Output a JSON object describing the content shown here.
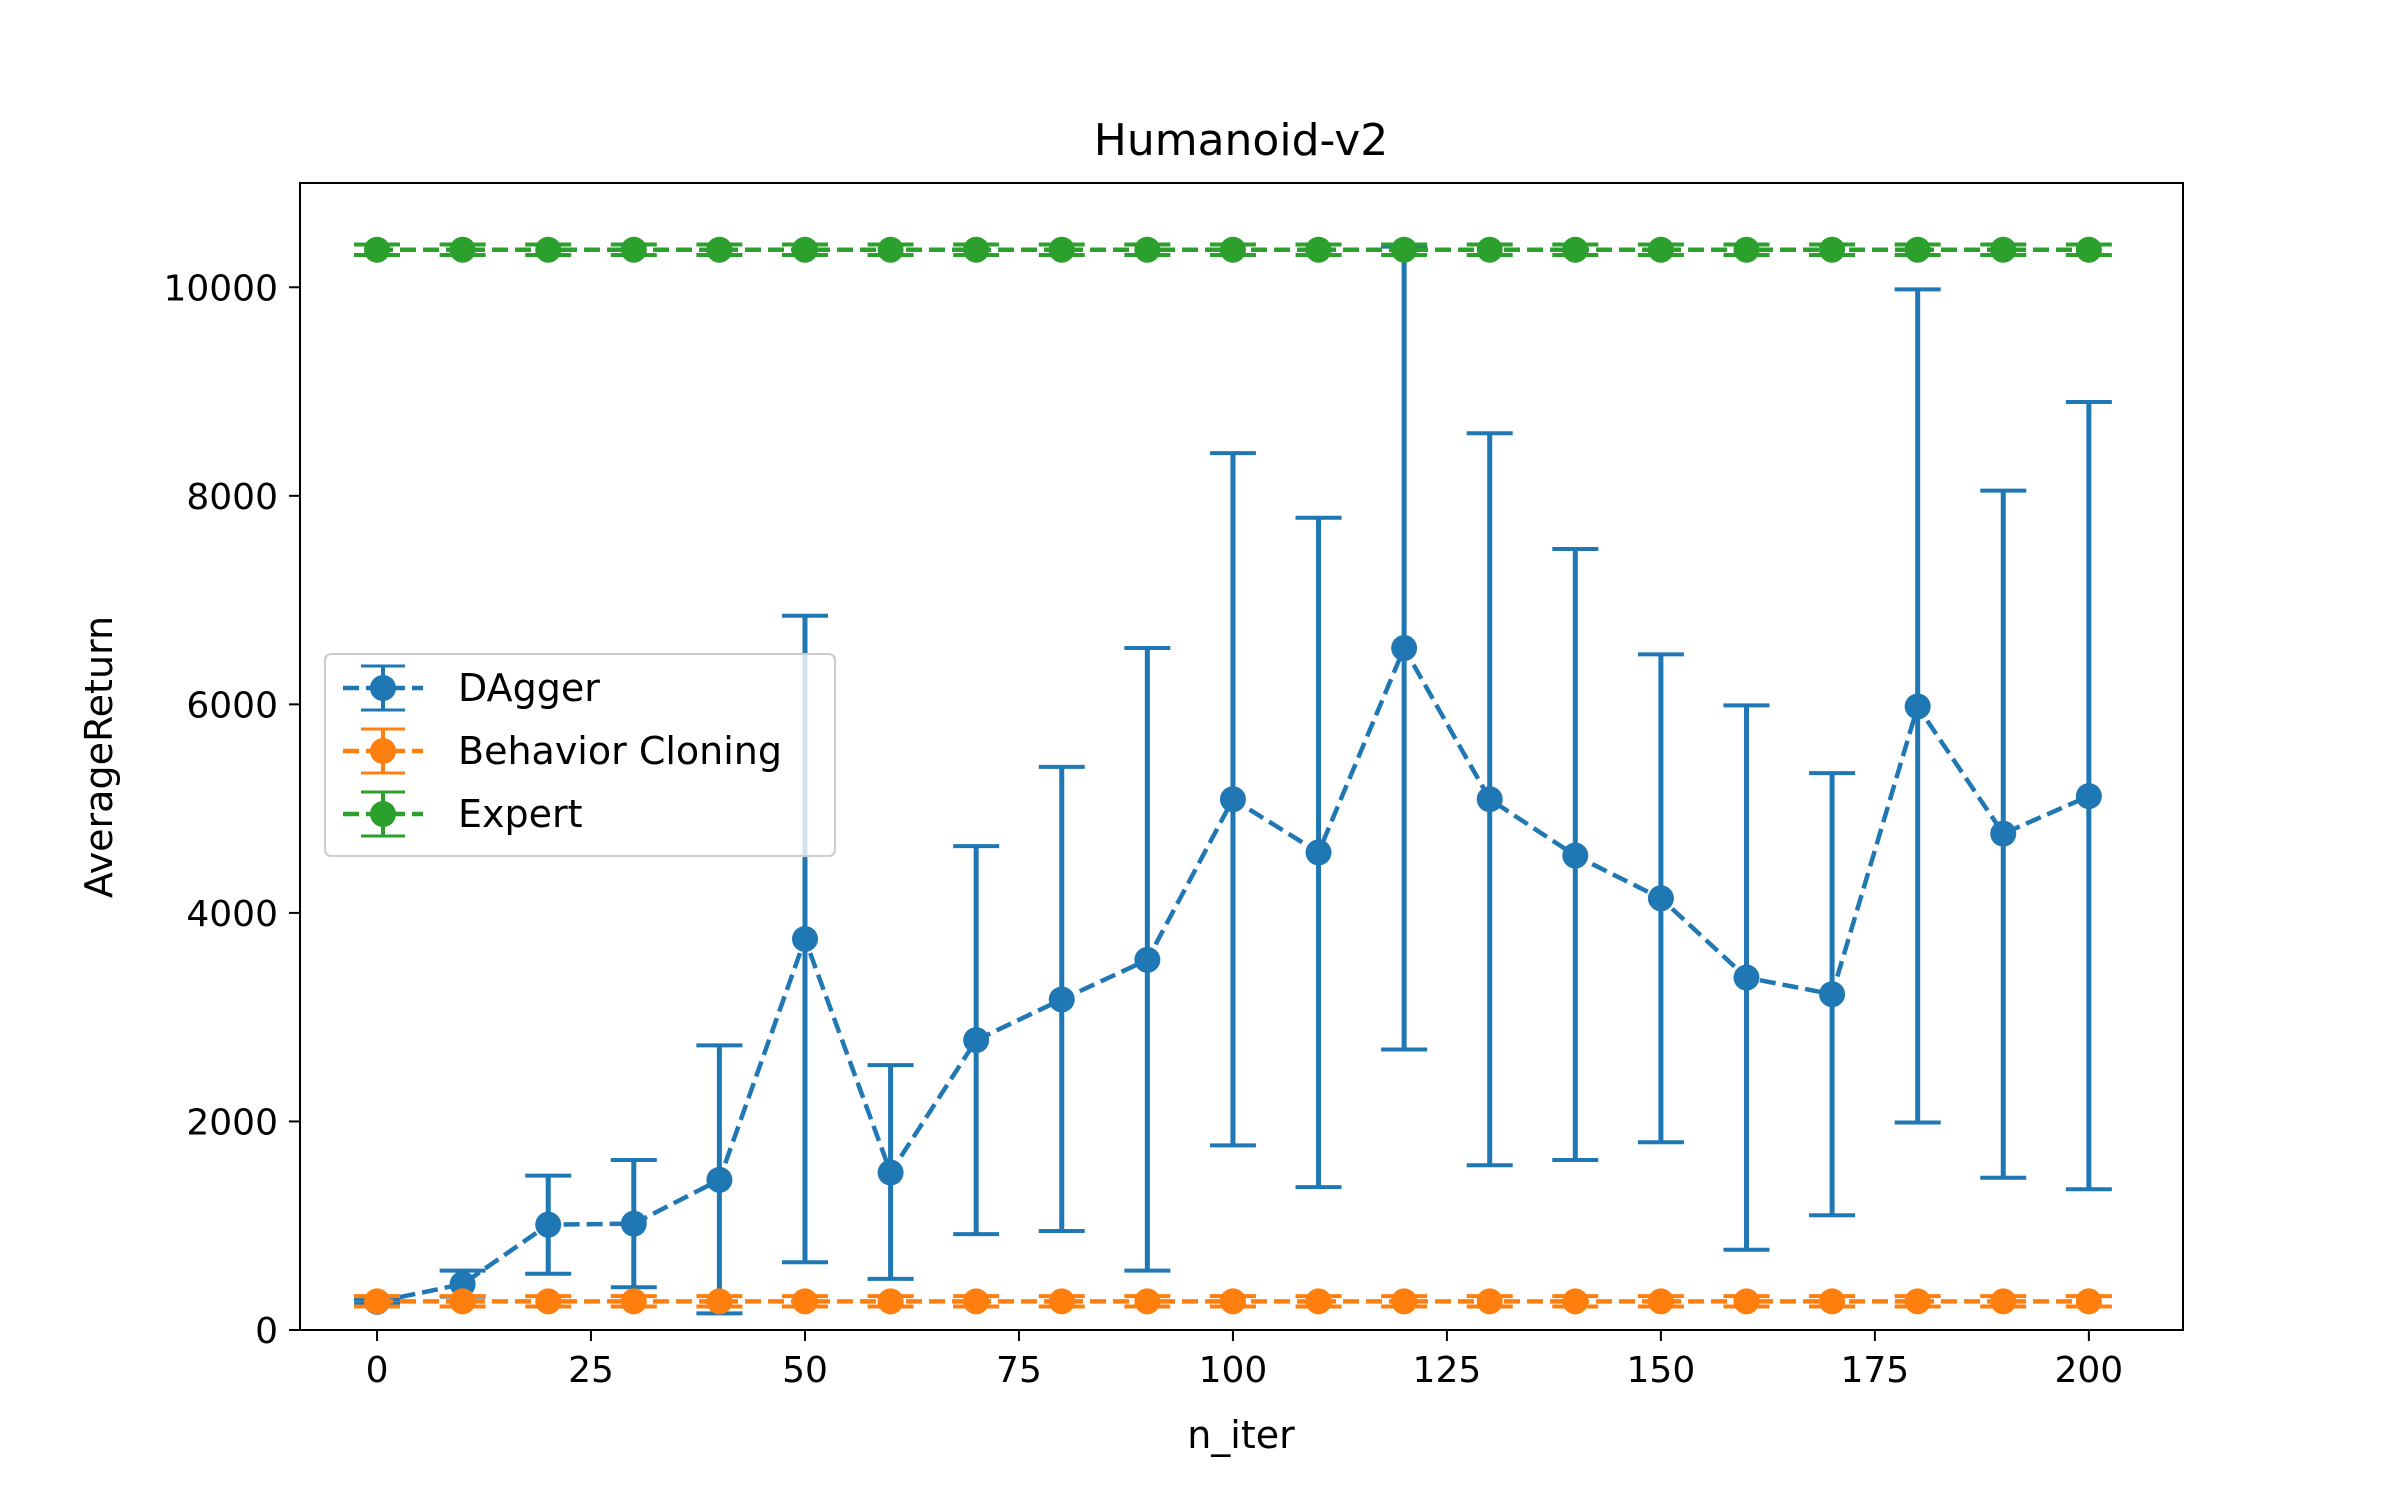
{
  "chart_data": {
    "type": "line",
    "title": "Humanoid-v2",
    "xlabel": "n_iter",
    "ylabel": "AverageReturn",
    "xlim": [
      -9,
      211
    ],
    "ylim": [
      0,
      11000
    ],
    "xticks": [
      0,
      25,
      50,
      75,
      100,
      125,
      150,
      175,
      200
    ],
    "yticks": [
      0,
      2000,
      4000,
      6000,
      8000,
      10000
    ],
    "grid": false,
    "legend_position": "center-left",
    "x": [
      0,
      10,
      20,
      30,
      40,
      50,
      60,
      70,
      80,
      90,
      100,
      110,
      120,
      130,
      140,
      150,
      160,
      170,
      180,
      190,
      200
    ],
    "series": [
      {
        "name": "DAgger",
        "color": "#1f77b4",
        "values": [
          270,
          440,
          1010,
          1020,
          1440,
          3750,
          1510,
          2780,
          3170,
          3550,
          5090,
          4580,
          6540,
          5090,
          4550,
          4140,
          3380,
          3220,
          5980,
          4760,
          5120
        ],
        "err_low": [
          250,
          320,
          540,
          410,
          160,
          650,
          490,
          920,
          950,
          570,
          1770,
          1370,
          2690,
          1580,
          1630,
          1800,
          770,
          1100,
          1990,
          1460,
          1350
        ],
        "err_high": [
          290,
          570,
          1480,
          1630,
          2730,
          6850,
          2540,
          4640,
          5400,
          6540,
          8410,
          7790,
          10390,
          8600,
          7490,
          6480,
          5990,
          5340,
          9980,
          8050,
          8900
        ]
      },
      {
        "name": "Behavior Cloning",
        "color": "#ff7f0e",
        "values": [
          275,
          275,
          275,
          275,
          275,
          275,
          275,
          275,
          275,
          275,
          275,
          275,
          275,
          275,
          275,
          275,
          275,
          275,
          275,
          275,
          275
        ],
        "err_low": [
          225,
          225,
          225,
          225,
          225,
          225,
          225,
          225,
          225,
          225,
          225,
          225,
          225,
          225,
          225,
          225,
          225,
          225,
          225,
          225,
          225
        ],
        "err_high": [
          325,
          325,
          325,
          325,
          325,
          325,
          325,
          325,
          325,
          325,
          325,
          325,
          325,
          325,
          325,
          325,
          325,
          325,
          325,
          325,
          325
        ]
      },
      {
        "name": "Expert",
        "color": "#2ca02c",
        "values": [
          10360,
          10360,
          10360,
          10360,
          10360,
          10360,
          10360,
          10360,
          10360,
          10360,
          10360,
          10360,
          10360,
          10360,
          10360,
          10360,
          10360,
          10360,
          10360,
          10360,
          10360
        ],
        "err_low": [
          10310,
          10310,
          10310,
          10310,
          10310,
          10310,
          10310,
          10310,
          10310,
          10310,
          10310,
          10310,
          10310,
          10310,
          10310,
          10310,
          10310,
          10310,
          10310,
          10310,
          10310
        ],
        "err_high": [
          10410,
          10410,
          10410,
          10410,
          10410,
          10410,
          10410,
          10410,
          10410,
          10410,
          10410,
          10410,
          10410,
          10410,
          10410,
          10410,
          10410,
          10410,
          10410,
          10410,
          10410
        ]
      }
    ]
  }
}
